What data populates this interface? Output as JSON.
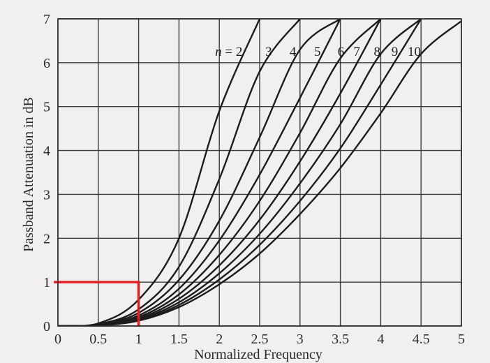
{
  "chart_data": {
    "type": "line",
    "xlabel": "Normalized Frequency",
    "ylabel": "Passband Attenuation in dB",
    "xlim": [
      0,
      5
    ],
    "ylim": [
      0,
      7
    ],
    "x_ticks": [
      "0",
      "0.5",
      "1",
      "1.5",
      "2",
      "2.5",
      "3",
      "3.5",
      "4",
      "4.5",
      "5"
    ],
    "y_ticks": [
      "0",
      "1",
      "2",
      "3",
      "4",
      "5",
      "6",
      "7"
    ],
    "grid": true,
    "series_label_prefix": "n = ",
    "series": [
      {
        "name": "2",
        "x": [
          0,
          0.5,
          1,
          1.5,
          2,
          2.5
        ],
        "y": [
          0,
          0.06,
          0.6,
          2.0,
          4.9,
          7.0
        ]
      },
      {
        "name": "3",
        "x": [
          0,
          0.5,
          1,
          1.5,
          2,
          2.5,
          3
        ],
        "y": [
          0,
          0.04,
          0.38,
          1.35,
          3.35,
          5.8,
          7.0
        ]
      },
      {
        "name": "4",
        "x": [
          0,
          0.5,
          1,
          1.5,
          2,
          2.5,
          3,
          3.5
        ],
        "y": [
          0,
          0.03,
          0.3,
          1.05,
          2.4,
          4.3,
          6.3,
          7.0
        ]
      },
      {
        "name": "5",
        "x": [
          0,
          0.5,
          1,
          1.5,
          2,
          2.5,
          3,
          3.5
        ],
        "y": [
          0,
          0.025,
          0.24,
          0.85,
          1.95,
          3.45,
          5.2,
          7.0
        ]
      },
      {
        "name": "6",
        "x": [
          0,
          0.5,
          1,
          1.5,
          2,
          2.5,
          3,
          3.5,
          4
        ],
        "y": [
          0,
          0.02,
          0.2,
          0.72,
          1.62,
          2.85,
          4.4,
          6.1,
          7.0
        ]
      },
      {
        "name": "7",
        "x": [
          0,
          0.5,
          1,
          1.5,
          2,
          2.5,
          3,
          3.5,
          4
        ],
        "y": [
          0,
          0.018,
          0.17,
          0.62,
          1.38,
          2.42,
          3.75,
          5.3,
          7.0
        ]
      },
      {
        "name": "8",
        "x": [
          0,
          0.5,
          1,
          1.5,
          2,
          2.5,
          3,
          3.5,
          4,
          4.5
        ],
        "y": [
          0,
          0.016,
          0.15,
          0.54,
          1.2,
          2.1,
          3.25,
          4.6,
          6.2,
          7.0
        ]
      },
      {
        "name": "9",
        "x": [
          0,
          0.5,
          1,
          1.5,
          2,
          2.5,
          3,
          3.5,
          4,
          4.5
        ],
        "y": [
          0,
          0.014,
          0.13,
          0.48,
          1.06,
          1.85,
          2.85,
          4.05,
          5.5,
          7.0
        ]
      },
      {
        "name": "10",
        "x": [
          0,
          0.5,
          1,
          1.5,
          2,
          2.5,
          3,
          3.5,
          4,
          4.5,
          5
        ],
        "y": [
          0,
          0.012,
          0.12,
          0.43,
          0.95,
          1.65,
          2.55,
          3.6,
          4.85,
          6.2,
          6.95
        ]
      }
    ],
    "highlight": {
      "x": 1,
      "y": 1,
      "color": "#e31c25"
    }
  }
}
